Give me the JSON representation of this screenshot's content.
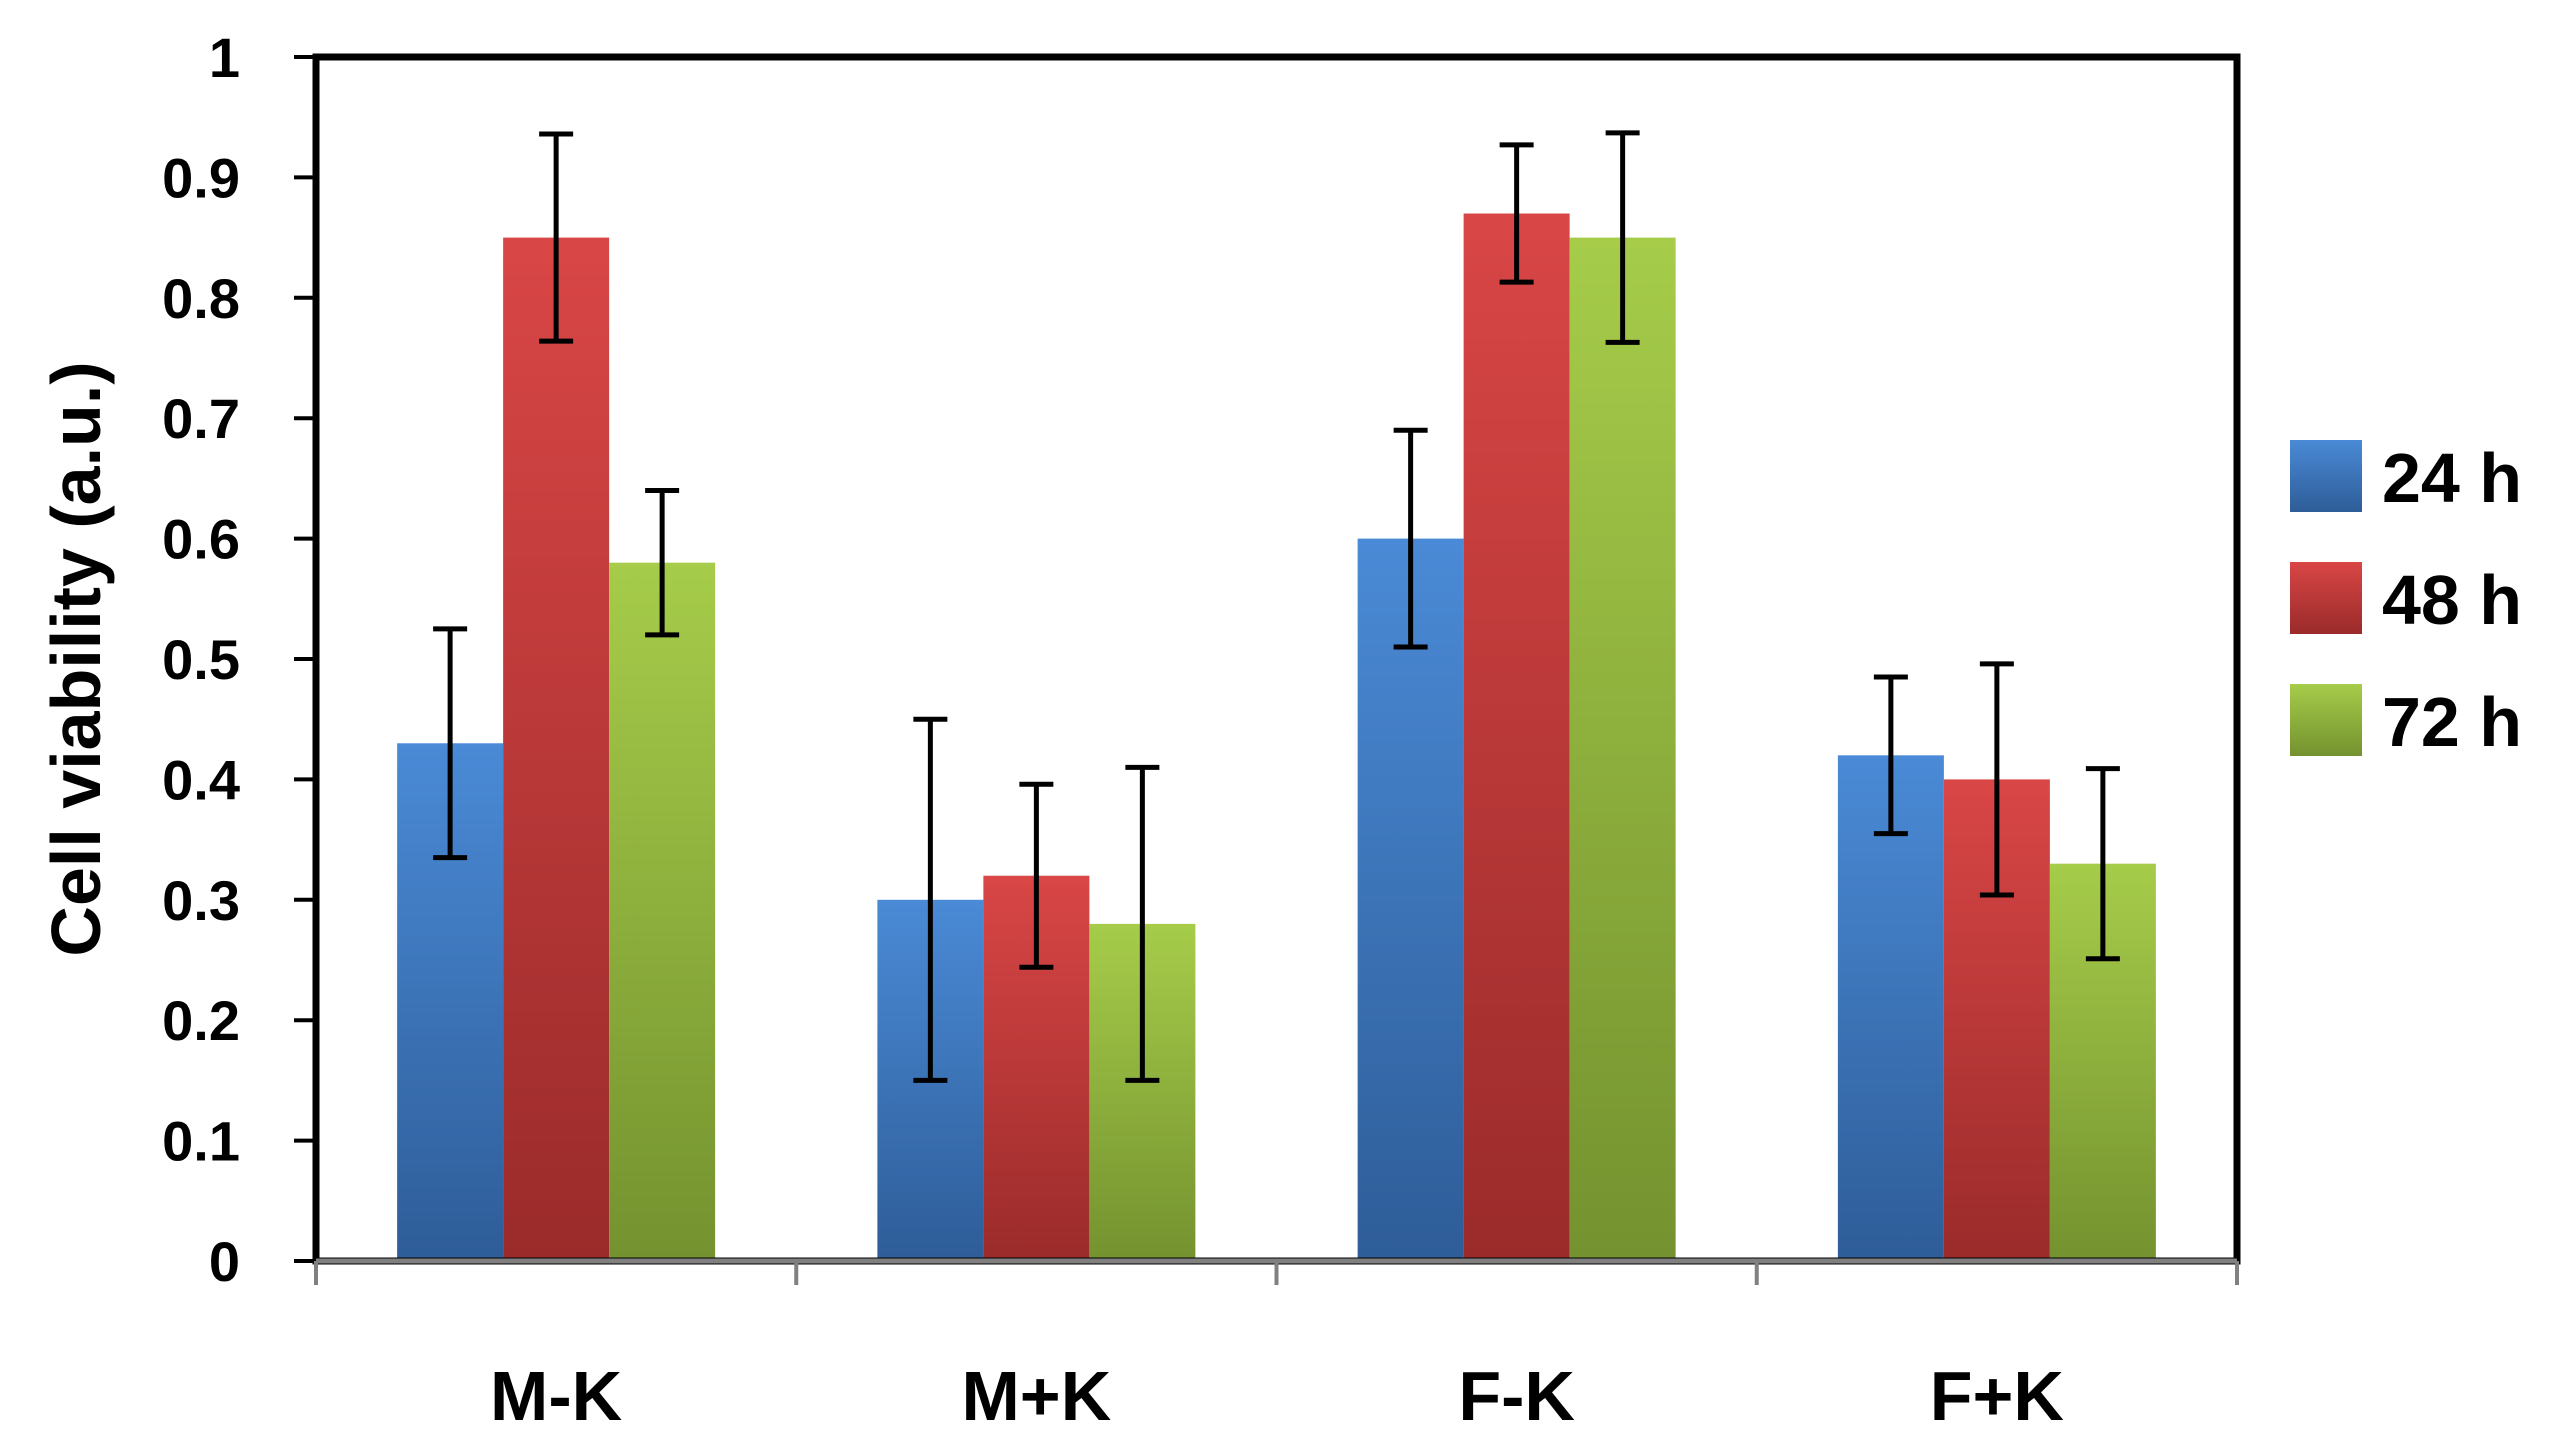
{
  "chart_data": {
    "type": "bar",
    "title": "",
    "xlabel": "",
    "ylabel": "Cell viability (a.u.)",
    "ylim": [
      0,
      1
    ],
    "yticks": [
      "0",
      "0.1",
      "0.2",
      "0.3",
      "0.4",
      "0.5",
      "0.6",
      "0.7",
      "0.8",
      "0.9",
      "1"
    ],
    "categories": [
      "M-K",
      "M+K",
      "F-K",
      "F+K"
    ],
    "legend_position": "right",
    "series": [
      {
        "name": "24 h",
        "color_light": "#4a8ad6",
        "color_dark": "#2e5d98",
        "values": [
          0.43,
          0.3,
          0.6,
          0.42
        ],
        "errors": [
          0.095,
          0.15,
          0.09,
          0.065
        ]
      },
      {
        "name": "48 h",
        "color_light": "#d94646",
        "color_dark": "#9a2b2a",
        "values": [
          0.85,
          0.32,
          0.87,
          0.4
        ],
        "errors": [
          0.086,
          0.076,
          0.057,
          0.096
        ]
      },
      {
        "name": "72 h",
        "color_light": "#a6cc4a",
        "color_dark": "#74922f",
        "values": [
          0.58,
          0.28,
          0.85,
          0.33
        ],
        "errors": [
          0.06,
          0.13,
          0.087,
          0.079
        ]
      }
    ]
  }
}
